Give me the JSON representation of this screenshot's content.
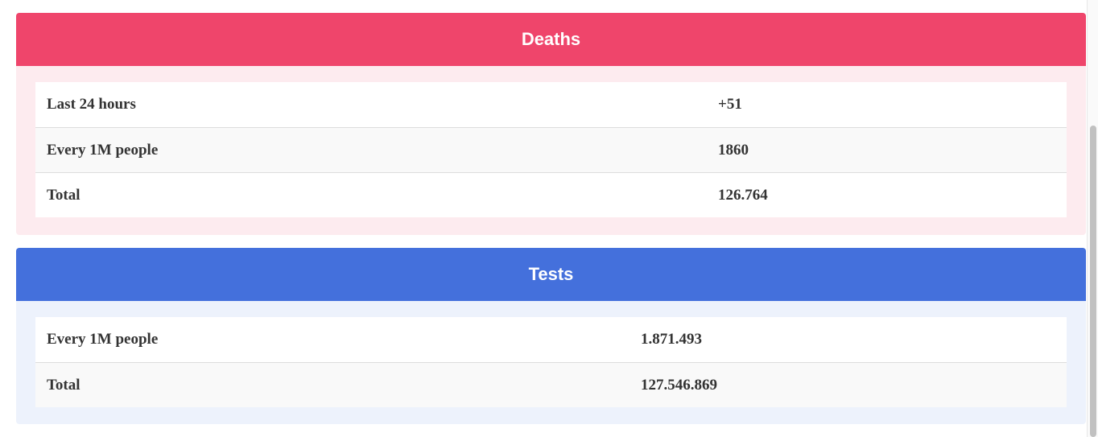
{
  "deaths": {
    "title": "Deaths",
    "header_color": "#ef456b",
    "rows": [
      {
        "label": "Last 24 hours",
        "value": "+51"
      },
      {
        "label": "Every 1M people",
        "value": "1860"
      },
      {
        "label": "Total",
        "value": "126.764"
      }
    ]
  },
  "tests": {
    "title": "Tests",
    "header_color": "#4470dc",
    "rows": [
      {
        "label": "Every 1M people",
        "value": "1.871.493"
      },
      {
        "label": "Total",
        "value": "127.546.869"
      }
    ]
  }
}
